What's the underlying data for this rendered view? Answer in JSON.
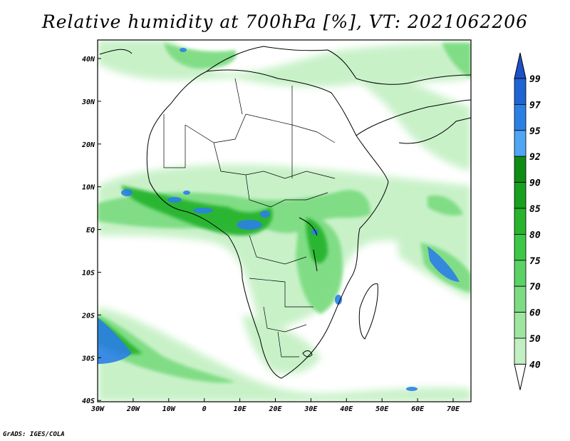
{
  "title": "Relative humidity at 700hPa [%], VT: 2021062206",
  "credit": "GrADS: IGES/COLA",
  "map": {
    "lon_ticks": [
      "30W",
      "20W",
      "10W",
      "0",
      "10E",
      "20E",
      "30E",
      "40E",
      "50E",
      "60E",
      "70E"
    ],
    "lat_ticks": [
      "40N",
      "30N",
      "20N",
      "10N",
      "EQ",
      "10S",
      "20S",
      "30S",
      "40S"
    ]
  },
  "colorbar": {
    "levels": [
      "99",
      "97",
      "95",
      "92",
      "90",
      "85",
      "80",
      "75",
      "70",
      "60",
      "50",
      "40"
    ],
    "colors": [
      "#1e64d2",
      "#2b80e6",
      "#50a5f5",
      "#0f8c14",
      "#19a01e",
      "#28b42d",
      "#3cc846",
      "#5ad264",
      "#7ddc82",
      "#a0e6a0",
      "#c3f0c3",
      "#e6fae6"
    ],
    "arrow_top_color": "#1e50c8",
    "arrow_bottom_color": "#ffffff"
  }
}
